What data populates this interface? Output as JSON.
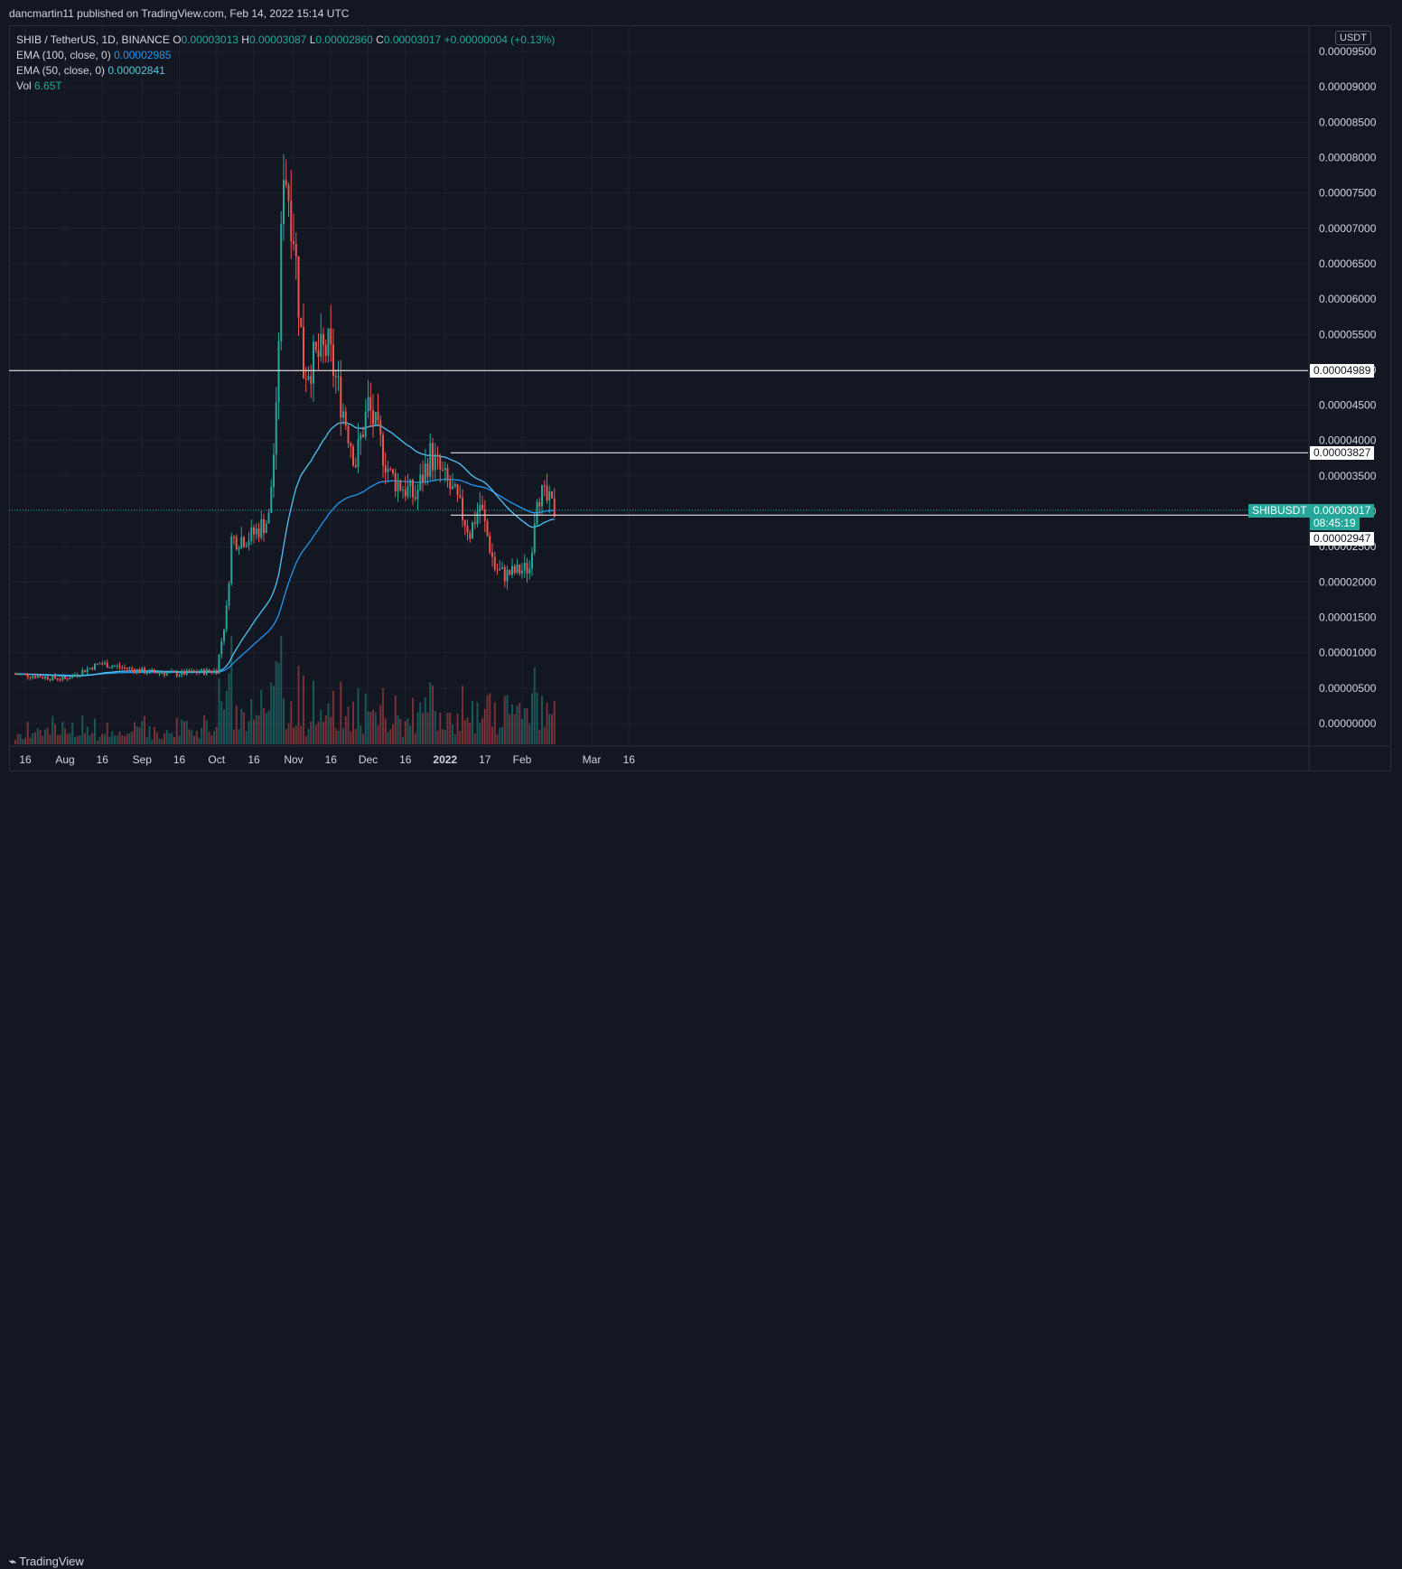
{
  "header": {
    "published": "dancmartin11 published on TradingView.com, Feb 14, 2022 15:14 UTC"
  },
  "legend": {
    "symbol": "SHIB / TetherUS, 1D, BINANCE",
    "o_label": "O",
    "o": "0.00003013",
    "h_label": "H",
    "h": "0.00003087",
    "l_label": "L",
    "l": "0.00002860",
    "c_label": "C",
    "c": "0.00003017",
    "change": "+0.00000004 (+0.13%)",
    "ema100_label": "EMA (100, close, 0)",
    "ema100": "0.00002985",
    "ema50_label": "EMA (50, close, 0)",
    "ema50": "0.00002841",
    "vol_label": "Vol",
    "vol": "6.65T"
  },
  "price_axis": {
    "unit": "USDT"
  },
  "tags": {
    "symbol": "SHIBUSDT",
    "current": "0.00003017",
    "countdown": "08:45:19",
    "level1": "0.00004989",
    "level2": "0.00003827",
    "level3": "0.00002947"
  },
  "footer": {
    "brand": "TradingView"
  },
  "colors": {
    "up": "#26a69a",
    "down": "#ef5350",
    "ema100": "#2196f3",
    "ema50": "#4fc3f7",
    "bg": "#131722",
    "grid": "#1e222d"
  },
  "chart_data": {
    "type": "candlestick",
    "y_ticks": [
      "0.00009500",
      "0.00009000",
      "0.00008500",
      "0.00008000",
      "0.00007500",
      "0.00007000",
      "0.00006500",
      "0.00006000",
      "0.00005500",
      "0.00005000",
      "0.00004500",
      "0.00004000",
      "0.00003500",
      "0.00003000",
      "0.00002500",
      "0.00002000",
      "0.00001500",
      "0.00001000",
      "0.00000500",
      "0.00000000"
    ],
    "ylim": [
      0,
      0.0001
    ],
    "x_ticks": [
      "16",
      "Aug",
      "16",
      "Sep",
      "16",
      "Oct",
      "16",
      "Nov",
      "16",
      "Dec",
      "16",
      "2022",
      "17",
      "Feb",
      "Mar",
      "16"
    ],
    "horizontal_levels": [
      4.989e-05,
      3.827e-05,
      2.947e-05
    ],
    "anchor_points": [
      {
        "date": "2021-07-12",
        "close": 7e-06
      },
      {
        "date": "2021-08-01",
        "close": 6.3e-06
      },
      {
        "date": "2021-08-15",
        "close": 8.5e-06
      },
      {
        "date": "2021-09-01",
        "close": 7.4e-06
      },
      {
        "date": "2021-09-15",
        "close": 7e-06
      },
      {
        "date": "2021-10-01",
        "close": 7.5e-06
      },
      {
        "date": "2021-10-05",
        "close": 1.6e-05
      },
      {
        "date": "2021-10-07",
        "close": 2.6e-05
      },
      {
        "date": "2021-10-15",
        "close": 2.65e-05
      },
      {
        "date": "2021-10-22",
        "close": 2.9e-05
      },
      {
        "date": "2021-10-25",
        "close": 4.3e-05
      },
      {
        "date": "2021-10-28",
        "close": 8e-05
      },
      {
        "date": "2021-11-01",
        "close": 7e-05
      },
      {
        "date": "2021-11-05",
        "close": 5e-05
      },
      {
        "date": "2021-11-15",
        "close": 5.3e-05
      },
      {
        "date": "2021-11-26",
        "close": 3.7e-05
      },
      {
        "date": "2021-12-01",
        "close": 4.5e-05
      },
      {
        "date": "2021-12-10",
        "close": 3.5e-05
      },
      {
        "date": "2021-12-20",
        "close": 3.2e-05
      },
      {
        "date": "2021-12-26",
        "close": 3.8e-05
      },
      {
        "date": "2022-01-05",
        "close": 3.2e-05
      },
      {
        "date": "2022-01-11",
        "close": 2.7e-05
      },
      {
        "date": "2022-01-15",
        "close": 3.1e-05
      },
      {
        "date": "2022-01-21",
        "close": 2.2e-05
      },
      {
        "date": "2022-01-25",
        "close": 2.1e-05
      },
      {
        "date": "2022-02-04",
        "close": 2.2e-05
      },
      {
        "date": "2022-02-07",
        "close": 3.3e-05
      },
      {
        "date": "2022-02-14",
        "close": 3.017e-05
      }
    ]
  }
}
